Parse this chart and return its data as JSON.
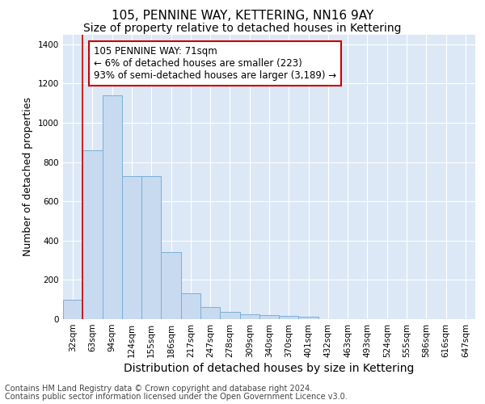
{
  "title": "105, PENNINE WAY, KETTERING, NN16 9AY",
  "subtitle": "Size of property relative to detached houses in Kettering",
  "xlabel": "Distribution of detached houses by size in Kettering",
  "ylabel": "Number of detached properties",
  "categories": [
    "32sqm",
    "63sqm",
    "94sqm",
    "124sqm",
    "155sqm",
    "186sqm",
    "217sqm",
    "247sqm",
    "278sqm",
    "309sqm",
    "340sqm",
    "370sqm",
    "401sqm",
    "432sqm",
    "463sqm",
    "493sqm",
    "524sqm",
    "555sqm",
    "586sqm",
    "616sqm",
    "647sqm"
  ],
  "values": [
    100,
    860,
    1140,
    730,
    730,
    340,
    130,
    60,
    35,
    25,
    20,
    15,
    12,
    0,
    0,
    0,
    0,
    0,
    0,
    0,
    0
  ],
  "bar_color": "#c8daf0",
  "bar_edge_color": "#7bafd4",
  "redline_x": 0.5,
  "annotation_text": "105 PENNINE WAY: 71sqm\n← 6% of detached houses are smaller (223)\n93% of semi-detached houses are larger (3,189) →",
  "annotation_box_facecolor": "#ffffff",
  "annotation_box_edgecolor": "#cc0000",
  "ylim": [
    0,
    1450
  ],
  "yticks": [
    0,
    200,
    400,
    600,
    800,
    1000,
    1200,
    1400
  ],
  "footer_line1": "Contains HM Land Registry data © Crown copyright and database right 2024.",
  "footer_line2": "Contains public sector information licensed under the Open Government Licence v3.0.",
  "fig_bg_color": "#ffffff",
  "plot_bg_color": "#dce8f5",
  "grid_color": "#ffffff",
  "title_fontsize": 11,
  "subtitle_fontsize": 10,
  "ylabel_fontsize": 9,
  "xlabel_fontsize": 10,
  "tick_fontsize": 7.5,
  "annotation_fontsize": 8.5,
  "footer_fontsize": 7
}
